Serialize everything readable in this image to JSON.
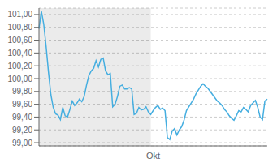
{
  "chart_data": {
    "type": "line",
    "categories": [
      null,
      null,
      null,
      null,
      null,
      null,
      null,
      null,
      null,
      null,
      null,
      null,
      null,
      null,
      null,
      null,
      null,
      null,
      null,
      null,
      null,
      null,
      null,
      null,
      null,
      null,
      null,
      null,
      null,
      null,
      null,
      null,
      null,
      null,
      null,
      null,
      null,
      null,
      null,
      null,
      null,
      null,
      null,
      null,
      null,
      null,
      null,
      null,
      "Okt",
      null,
      null,
      null,
      null,
      null,
      null,
      null,
      null,
      null,
      null,
      null,
      null,
      null,
      null,
      null,
      null,
      null,
      null,
      null,
      null,
      null,
      null,
      null,
      null,
      null,
      null,
      null,
      null,
      null,
      null,
      null,
      null,
      null,
      null,
      null,
      null,
      null,
      null,
      null,
      null,
      null,
      null,
      null,
      null,
      null,
      null,
      null,
      null
    ],
    "values": [
      100.78,
      101.05,
      100.85,
      100.5,
      100.1,
      99.75,
      99.55,
      99.45,
      99.43,
      99.36,
      99.55,
      99.42,
      99.4,
      99.52,
      99.65,
      99.58,
      99.62,
      99.68,
      99.64,
      99.72,
      99.9,
      100.05,
      100.12,
      100.16,
      100.28,
      100.18,
      100.3,
      100.32,
      100.12,
      100.06,
      100.08,
      99.56,
      99.6,
      99.72,
      99.88,
      99.9,
      99.84,
      99.84,
      99.86,
      99.84,
      99.44,
      99.46,
      99.55,
      99.51,
      99.52,
      99.56,
      99.48,
      99.44,
      99.5,
      99.55,
      99.58,
      99.52,
      99.54,
      99.5,
      99.08,
      99.05,
      99.18,
      99.22,
      99.12,
      99.2,
      99.25,
      99.35,
      99.5,
      99.56,
      99.62,
      99.68,
      99.76,
      99.82,
      99.88,
      99.92,
      99.88,
      99.85,
      99.8,
      99.75,
      99.7,
      99.65,
      99.62,
      99.58,
      99.52,
      99.48,
      99.42,
      99.38,
      99.35,
      99.42,
      99.5,
      99.48,
      99.55,
      99.52,
      99.48,
      99.58,
      99.62,
      99.66,
      99.55,
      99.4,
      99.36,
      99.65,
      99.68
    ],
    "color": "#45aee0",
    "ylim": [
      98.95,
      101.1
    ],
    "yticks": [
      {
        "value": 99.0,
        "label": "99,00"
      },
      {
        "value": 99.2,
        "label": "99,20"
      },
      {
        "value": 99.4,
        "label": "99,40"
      },
      {
        "value": 99.6,
        "label": "99,60"
      },
      {
        "value": 99.8,
        "label": "99,80"
      },
      {
        "value": 100.0,
        "label": "100,00"
      },
      {
        "value": 100.2,
        "label": "100,20"
      },
      {
        "value": 100.4,
        "label": "100,40"
      },
      {
        "value": 100.6,
        "label": "100,60"
      },
      {
        "value": 100.8,
        "label": "100,80"
      },
      {
        "value": 101.0,
        "label": "101,00"
      }
    ],
    "grid": true
  }
}
